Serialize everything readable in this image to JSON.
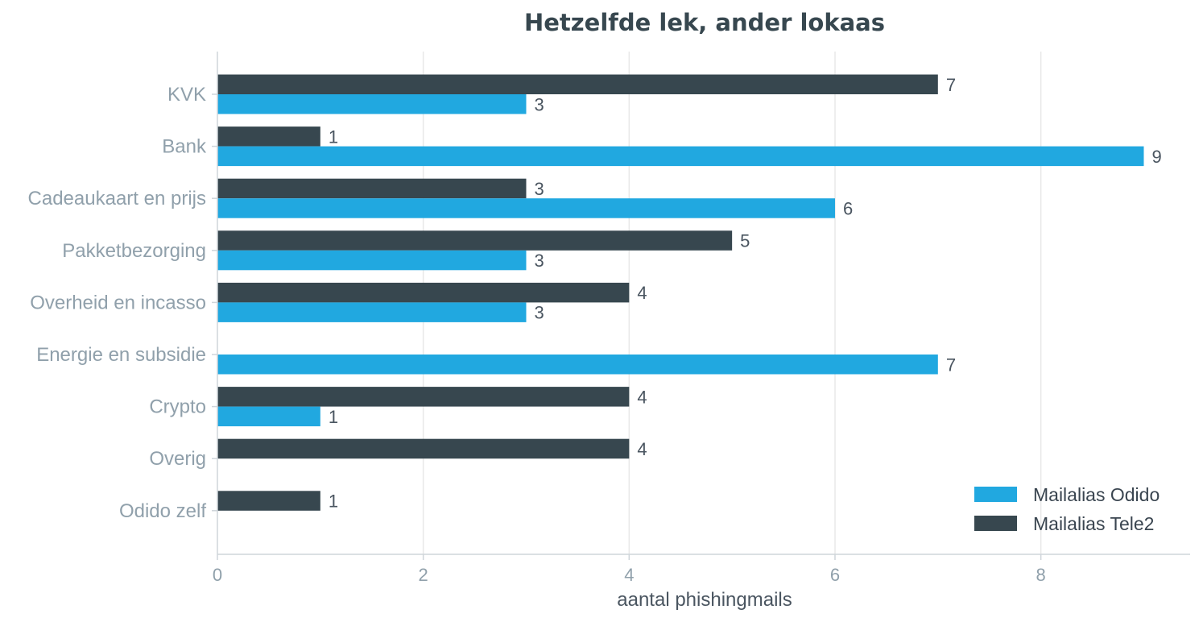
{
  "chart_data": {
    "type": "bar",
    "orientation": "horizontal",
    "title": "Hetzelfde lek, ander lokaas",
    "xlabel": "aantal phishingmails",
    "ylabel": "",
    "xlim": [
      0,
      9.45
    ],
    "xticks": [
      0,
      2,
      4,
      6,
      8
    ],
    "grid": true,
    "legend_position": "bottom-right",
    "categories": [
      "KVK",
      "Bank",
      "Cadeaukaart en prijs",
      "Pakketbezorging",
      "Overheid en incasso",
      "Energie en subsidie",
      "Crypto",
      "Overig",
      "Odido zelf"
    ],
    "series": [
      {
        "name": "Mailalias Tele2",
        "color": "#37474f",
        "values": [
          7,
          1,
          3,
          5,
          4,
          0,
          4,
          4,
          1
        ]
      },
      {
        "name": "Mailalias Odido",
        "color": "#21a8e0",
        "values": [
          3,
          9,
          6,
          3,
          3,
          7,
          1,
          0,
          0
        ]
      }
    ],
    "legend_order": [
      "Mailalias Odido",
      "Mailalias Tele2"
    ]
  }
}
